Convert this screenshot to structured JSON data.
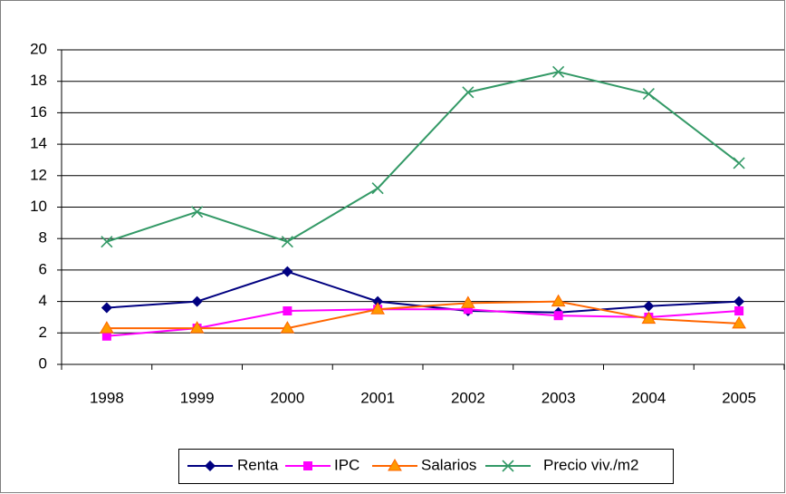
{
  "chart_data": {
    "type": "line",
    "categories": [
      "1998",
      "1999",
      "2000",
      "2001",
      "2002",
      "2003",
      "2004",
      "2005"
    ],
    "series": [
      {
        "name": "Renta",
        "color": "#000080",
        "marker": "diamond",
        "values": [
          3.6,
          4.0,
          5.9,
          4.0,
          3.4,
          3.3,
          3.7,
          4.0
        ]
      },
      {
        "name": "IPC",
        "color": "#ff00ff",
        "marker": "square",
        "values": [
          1.8,
          2.3,
          3.4,
          3.5,
          3.5,
          3.1,
          3.0,
          3.4
        ]
      },
      {
        "name": "Salarios",
        "color": "#ff6600",
        "marker": "triangle",
        "values": [
          2.3,
          2.3,
          2.3,
          3.5,
          3.9,
          4.0,
          2.9,
          2.6
        ]
      },
      {
        "name": "Precio viv./m2",
        "color": "#339966",
        "marker": "x",
        "values": [
          7.8,
          9.7,
          7.8,
          11.2,
          17.3,
          18.6,
          17.2,
          12.8
        ]
      }
    ],
    "ylim": [
      0,
      20
    ],
    "yticks": [
      0,
      2,
      4,
      6,
      8,
      10,
      12,
      14,
      16,
      18,
      20
    ],
    "grid": true,
    "legend": "bottom"
  }
}
